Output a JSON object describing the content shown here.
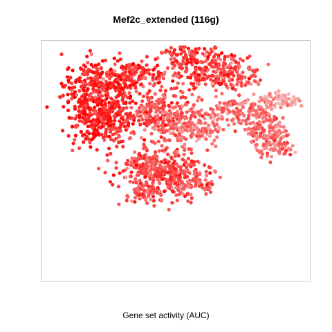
{
  "chart_data": {
    "type": "scatter",
    "title": "Mef2c_extended (116g)",
    "xlabel": "Gene set activity (AUC)",
    "ylabel": "",
    "grid": false,
    "legend": "none",
    "color_scale": {
      "low": "#f5b5b5",
      "high": "#ff0000",
      "meaning": "AUC"
    },
    "clusters": [
      {
        "cx": 0.215,
        "cy": 0.765,
        "sx": 0.075,
        "sy": 0.085,
        "n": 260,
        "auc": 0.82
      },
      {
        "cx": 0.235,
        "cy": 0.56,
        "sx": 0.06,
        "sy": 0.075,
        "n": 200,
        "auc": 0.78
      },
      {
        "cx": 0.16,
        "cy": 0.62,
        "sx": 0.04,
        "sy": 0.11,
        "n": 150,
        "auc": 0.8
      },
      {
        "cx": 0.345,
        "cy": 0.83,
        "sx": 0.055,
        "sy": 0.035,
        "n": 120,
        "auc": 0.7
      },
      {
        "cx": 0.47,
        "cy": 0.56,
        "sx": 0.06,
        "sy": 0.09,
        "n": 170,
        "auc": 0.55
      },
      {
        "cx": 0.395,
        "cy": 0.64,
        "sx": 0.03,
        "sy": 0.05,
        "n": 70,
        "auc": 0.55
      },
      {
        "cx": 0.56,
        "cy": 0.5,
        "sx": 0.06,
        "sy": 0.05,
        "n": 130,
        "auc": 0.35
      },
      {
        "cx": 0.66,
        "cy": 0.84,
        "sx": 0.095,
        "sy": 0.06,
        "n": 230,
        "auc": 0.6
      },
      {
        "cx": 0.56,
        "cy": 0.93,
        "sx": 0.07,
        "sy": 0.035,
        "n": 100,
        "auc": 0.72
      },
      {
        "cx": 0.72,
        "cy": 0.61,
        "sx": 0.06,
        "sy": 0.05,
        "n": 100,
        "auc": 0.38
      },
      {
        "cx": 0.85,
        "cy": 0.51,
        "sx": 0.04,
        "sy": 0.08,
        "n": 150,
        "auc": 0.42
      },
      {
        "cx": 0.88,
        "cy": 0.4,
        "sx": 0.035,
        "sy": 0.035,
        "n": 60,
        "auc": 0.4
      },
      {
        "cx": 0.91,
        "cy": 0.68,
        "sx": 0.045,
        "sy": 0.025,
        "n": 60,
        "auc": 0.1
      },
      {
        "cx": 0.46,
        "cy": 0.24,
        "sx": 0.075,
        "sy": 0.07,
        "n": 230,
        "auc": 0.62
      },
      {
        "cx": 0.4,
        "cy": 0.12,
        "sx": 0.05,
        "sy": 0.04,
        "n": 80,
        "auc": 0.55
      },
      {
        "cx": 0.56,
        "cy": 0.18,
        "sx": 0.05,
        "sy": 0.05,
        "n": 90,
        "auc": 0.5
      },
      {
        "cx": 0.36,
        "cy": 0.27,
        "sx": 0.05,
        "sy": 0.05,
        "n": 80,
        "auc": 0.6
      }
    ]
  }
}
